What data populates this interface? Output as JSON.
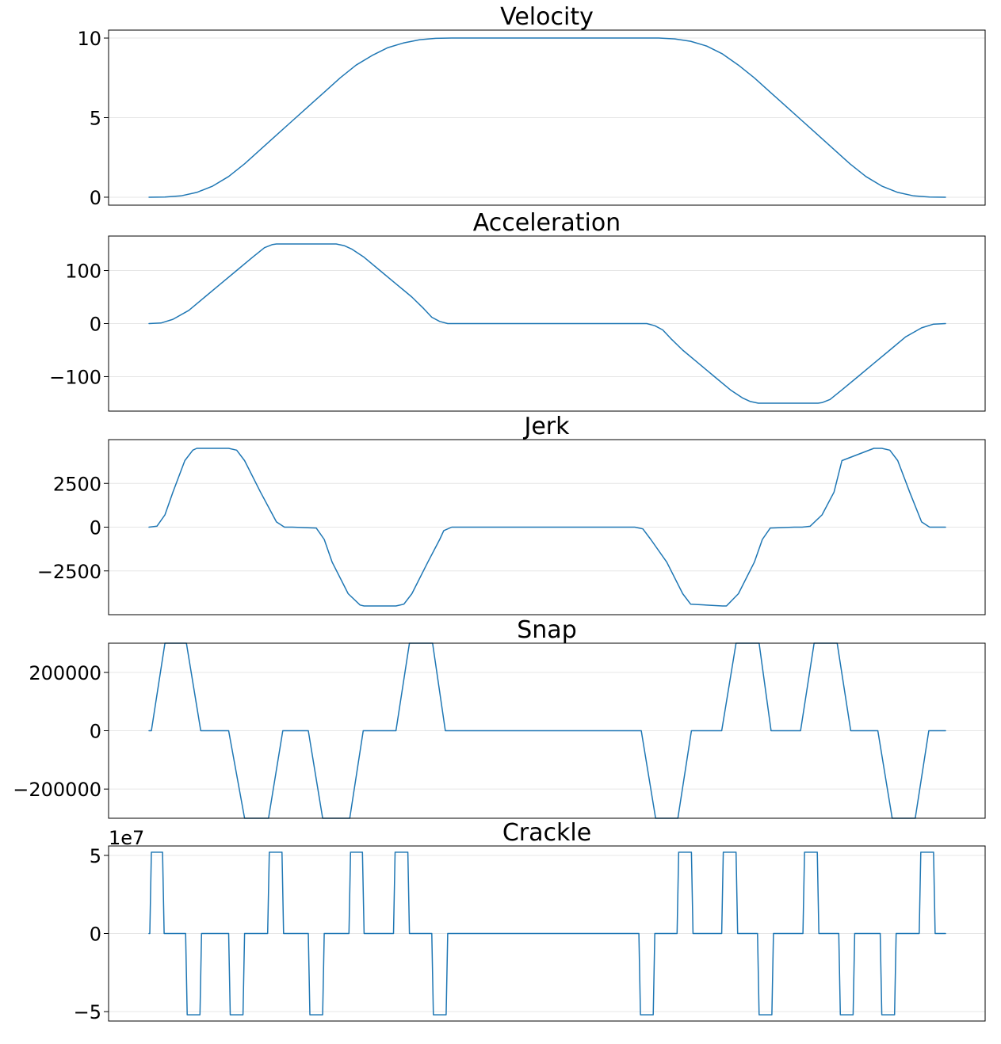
{
  "chart_data": [
    {
      "type": "line",
      "title": "Velocity",
      "xlim": [
        0,
        1
      ],
      "ylim": [
        -0.5,
        10.5
      ],
      "yticks": [
        0,
        5,
        10
      ],
      "ytick_labels": [
        "0",
        "5",
        "10"
      ],
      "offset_text": "",
      "grid": true,
      "color": "#1f77b4",
      "series": [
        {
          "x": [
            0,
            0.02,
            0.04,
            0.06,
            0.08,
            0.1,
            0.12,
            0.14,
            0.16,
            0.18,
            0.2,
            0.22,
            0.24,
            0.26,
            0.28,
            0.3,
            0.32,
            0.34,
            0.36,
            0.38,
            0.4,
            0.64,
            0.66,
            0.68,
            0.7,
            0.72,
            0.74,
            0.76,
            0.78,
            0.8,
            0.82,
            0.84,
            0.86,
            0.88,
            0.9,
            0.92,
            0.94,
            0.96,
            0.98,
            1.0
          ],
          "y": [
            0,
            0.01,
            0.08,
            0.3,
            0.7,
            1.3,
            2.1,
            3.0,
            3.9,
            4.8,
            5.7,
            6.6,
            7.5,
            8.3,
            8.9,
            9.4,
            9.7,
            9.9,
            9.98,
            10.0,
            10.0,
            10.0,
            9.95,
            9.8,
            9.5,
            9.0,
            8.3,
            7.5,
            6.6,
            5.7,
            4.8,
            3.9,
            3.0,
            2.1,
            1.3,
            0.7,
            0.3,
            0.08,
            0.01,
            0
          ]
        }
      ]
    },
    {
      "type": "line",
      "title": "Acceleration",
      "xlim": [
        0,
        1
      ],
      "ylim": [
        -165,
        165
      ],
      "yticks": [
        -100,
        0,
        100
      ],
      "ytick_labels": [
        "−100",
        "0",
        "100"
      ],
      "offset_text": "",
      "grid": true,
      "color": "#1f77b4",
      "series": [
        {
          "x": [
            0,
            0.015,
            0.03,
            0.05,
            0.07,
            0.09,
            0.11,
            0.13,
            0.145,
            0.155,
            0.16,
            0.235,
            0.245,
            0.255,
            0.27,
            0.29,
            0.31,
            0.33,
            0.345,
            0.355,
            0.365,
            0.375,
            0.625,
            0.635,
            0.645,
            0.655,
            0.67,
            0.69,
            0.71,
            0.73,
            0.745,
            0.755,
            0.765,
            0.84,
            0.845,
            0.855,
            0.87,
            0.89,
            0.91,
            0.93,
            0.95,
            0.97,
            0.985,
            1.0
          ],
          "y": [
            0,
            1,
            8,
            25,
            50,
            75,
            100,
            125,
            143,
            149,
            150,
            150,
            147,
            140,
            125,
            100,
            75,
            50,
            28,
            12,
            4,
            0,
            0,
            -4,
            -12,
            -28,
            -50,
            -75,
            -100,
            -125,
            -140,
            -147,
            -150,
            -150,
            -149,
            -143,
            -125,
            -100,
            -75,
            -50,
            -25,
            -8,
            -1,
            0
          ]
        }
      ]
    },
    {
      "type": "line",
      "title": "Jerk",
      "xlim": [
        0,
        1
      ],
      "ylim": [
        -5000,
        5000
      ],
      "yticks": [
        -2500,
        0,
        2500
      ],
      "ytick_labels": [
        "−2500",
        "0",
        "2500"
      ],
      "offset_text": "",
      "grid": true,
      "color": "#1f77b4",
      "series": [
        {
          "x": [
            0,
            0.01,
            0.02,
            0.03,
            0.045,
            0.055,
            0.06,
            0.1,
            0.11,
            0.12,
            0.14,
            0.16,
            0.17,
            0.18,
            0.21,
            0.22,
            0.23,
            0.25,
            0.265,
            0.27,
            0.31,
            0.32,
            0.33,
            0.35,
            0.365,
            0.37,
            0.38,
            0.61,
            0.62,
            0.63,
            0.65,
            0.67,
            0.68,
            0.72,
            0.725,
            0.74,
            0.76,
            0.77,
            0.78,
            0.81,
            0.82,
            0.83,
            0.845,
            0.86,
            0.87,
            0.91,
            0.92,
            0.93,
            0.94,
            0.955,
            0.97,
            0.98,
            1.0
          ],
          "y": [
            0,
            60,
            700,
            2000,
            3800,
            4400,
            4500,
            4500,
            4400,
            3800,
            2000,
            300,
            0,
            0,
            -50,
            -700,
            -2000,
            -3800,
            -4450,
            -4500,
            -4500,
            -4400,
            -3800,
            -2000,
            -700,
            -200,
            0,
            0,
            -100,
            -700,
            -2000,
            -3800,
            -4400,
            -4500,
            -4500,
            -3800,
            -2000,
            -700,
            -50,
            0,
            0,
            50,
            700,
            2000,
            3800,
            4500,
            4500,
            4400,
            3800,
            2000,
            300,
            0,
            0
          ]
        }
      ]
    },
    {
      "type": "line",
      "title": "Snap",
      "xlim": [
        0,
        1
      ],
      "ylim": [
        -300000,
        300000
      ],
      "yticks": [
        -200000,
        0,
        200000
      ],
      "ytick_labels": [
        "−200000",
        "0",
        "200000"
      ],
      "offset_text": "",
      "grid": true,
      "color": "#1f77b4",
      "series": [
        {
          "x": [
            0,
            0.003,
            0.02,
            0.047,
            0.065,
            0.1,
            0.12,
            0.15,
            0.168,
            0.2,
            0.218,
            0.252,
            0.269,
            0.3,
            0.31,
            0.327,
            0.356,
            0.372,
            0.618,
            0.636,
            0.664,
            0.681,
            0.719,
            0.737,
            0.766,
            0.781,
            0.818,
            0.835,
            0.864,
            0.881,
            0.915,
            0.933,
            0.962,
            0.979,
            1.0
          ],
          "y": [
            0,
            0,
            300000,
            300000,
            0,
            0,
            -300000,
            -300000,
            0,
            0,
            -300000,
            -300000,
            0,
            0,
            0,
            300000,
            300000,
            0,
            0,
            -300000,
            -300000,
            0,
            0,
            300000,
            300000,
            0,
            0,
            300000,
            300000,
            0,
            0,
            -300000,
            -300000,
            0,
            0
          ]
        }
      ]
    },
    {
      "type": "line",
      "title": "Crackle",
      "xlim": [
        0,
        1
      ],
      "ylim": [
        -5.6,
        5.6
      ],
      "yticks": [
        -5,
        0,
        5
      ],
      "ytick_labels": [
        "−5",
        "0",
        "5"
      ],
      "offset_text": "1e7",
      "grid": true,
      "color": "#1f77b4",
      "series": [
        {
          "x": [
            0,
            0.001,
            0.003,
            0.017,
            0.019,
            0.046,
            0.048,
            0.064,
            0.066,
            0.1,
            0.102,
            0.118,
            0.12,
            0.149,
            0.151,
            0.167,
            0.169,
            0.2,
            0.202,
            0.218,
            0.22,
            0.251,
            0.253,
            0.268,
            0.27,
            0.307,
            0.309,
            0.325,
            0.327,
            0.355,
            0.357,
            0.373,
            0.375,
            0.615,
            0.617,
            0.633,
            0.635,
            0.663,
            0.665,
            0.681,
            0.683,
            0.719,
            0.721,
            0.737,
            0.739,
            0.764,
            0.766,
            0.782,
            0.784,
            0.821,
            0.823,
            0.839,
            0.841,
            0.866,
            0.868,
            0.884,
            0.886,
            0.918,
            0.92,
            0.936,
            0.938,
            0.967,
            0.969,
            0.985,
            0.987,
            1.0
          ],
          "y": [
            0,
            0,
            5.2,
            5.2,
            0,
            0,
            -5.2,
            -5.2,
            0,
            0,
            -5.2,
            -5.2,
            0,
            0,
            5.2,
            5.2,
            0,
            0,
            -5.2,
            -5.2,
            0,
            0,
            5.2,
            5.2,
            0,
            0,
            5.2,
            5.2,
            0,
            0,
            -5.2,
            -5.2,
            0,
            0,
            -5.2,
            -5.2,
            0,
            0,
            5.2,
            5.2,
            0,
            0,
            5.2,
            5.2,
            0,
            0,
            -5.2,
            -5.2,
            0,
            0,
            5.2,
            5.2,
            0,
            0,
            -5.2,
            -5.2,
            0,
            0,
            -5.2,
            -5.2,
            0,
            0,
            5.2,
            5.2,
            0,
            0
          ]
        }
      ]
    }
  ]
}
